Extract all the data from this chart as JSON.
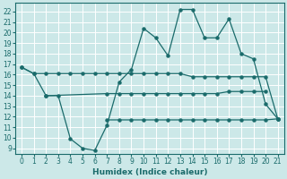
{
  "xlabel": "Humidex (Indice chaleur)",
  "bg_color": "#cce8e8",
  "grid_color": "#ffffff",
  "line_color": "#1a6b6b",
  "xlim": [
    -0.5,
    21.5
  ],
  "ylim": [
    8.5,
    22.8
  ],
  "xticks": [
    0,
    1,
    2,
    3,
    4,
    5,
    6,
    7,
    8,
    9,
    10,
    11,
    12,
    13,
    14,
    15,
    16,
    17,
    18,
    19,
    20,
    21
  ],
  "yticks": [
    9,
    10,
    11,
    12,
    13,
    14,
    15,
    16,
    17,
    18,
    19,
    20,
    21,
    22
  ],
  "curve_x": [
    0,
    1,
    2,
    3,
    4,
    5,
    6,
    7,
    8,
    9,
    10,
    11,
    12,
    13,
    14,
    15,
    16,
    17,
    18,
    19,
    20,
    21
  ],
  "curve_y": [
    16.7,
    16.1,
    14.0,
    14.0,
    9.9,
    9.0,
    8.8,
    11.2,
    15.3,
    16.5,
    20.4,
    19.5,
    17.8,
    22.2,
    22.2,
    19.5,
    19.5,
    21.3,
    18.0,
    17.5,
    13.2,
    11.8
  ],
  "flat1_x": [
    0,
    1,
    2,
    3,
    4,
    5,
    6,
    7,
    8,
    9,
    10,
    11,
    12,
    13,
    14,
    15,
    16,
    17,
    18,
    19,
    20,
    21
  ],
  "flat1_y": [
    16.7,
    16.1,
    16.1,
    16.1,
    16.1,
    16.1,
    16.1,
    16.1,
    16.1,
    16.1,
    16.1,
    16.1,
    16.1,
    16.1,
    15.8,
    15.8,
    15.8,
    15.8,
    15.8,
    15.8,
    15.8,
    11.8
  ],
  "flat2_x": [
    2,
    7,
    8,
    9,
    10,
    11,
    12,
    13,
    14,
    15,
    16,
    17,
    18,
    19,
    20
  ],
  "flat2_y": [
    14.0,
    14.2,
    14.2,
    14.2,
    14.2,
    14.2,
    14.2,
    14.2,
    14.2,
    14.2,
    14.2,
    14.4,
    14.4,
    14.4,
    14.4
  ],
  "flat3_x": [
    7,
    8,
    9,
    10,
    11,
    12,
    13,
    14,
    15,
    16,
    17,
    18,
    19,
    20,
    21
  ],
  "flat3_y": [
    11.7,
    11.7,
    11.7,
    11.7,
    11.7,
    11.7,
    11.7,
    11.7,
    11.7,
    11.7,
    11.7,
    11.7,
    11.7,
    11.7,
    11.8
  ]
}
